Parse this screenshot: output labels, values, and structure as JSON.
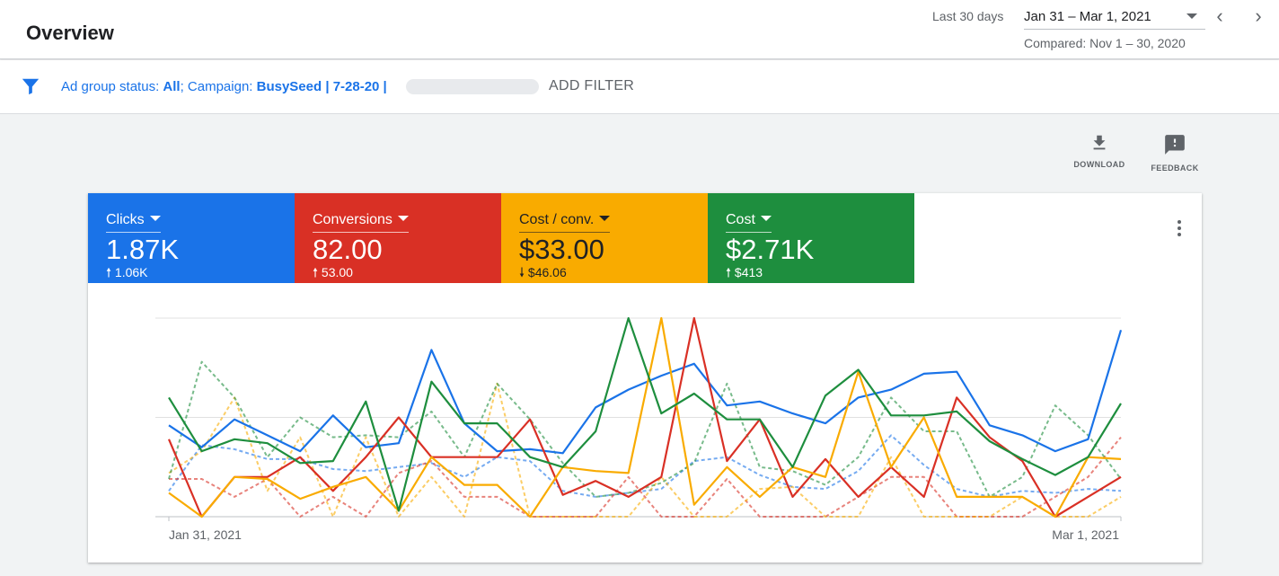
{
  "header": {
    "title": "Overview",
    "range_label": "Last 30 days",
    "range_value": "Jan 31 – Mar 1, 2021",
    "compared": "Compared: Nov 1 – 30, 2020",
    "prev_icon": "chevron-left-icon",
    "next_icon": "chevron-right-icon"
  },
  "filter": {
    "prefix": "Ad group status: ",
    "status_value": "All",
    "mid": "; Campaign: ",
    "campaign_value": "BusySeed | 7-28-20 |",
    "add_label": "ADD FILTER"
  },
  "actions": {
    "download": "DOWNLOAD",
    "feedback": "FEEDBACK"
  },
  "metrics": [
    {
      "name": "Clicks",
      "value": "1.87K",
      "arrow": "up",
      "change": "1.06K",
      "color": "#1a73e8"
    },
    {
      "name": "Conversions",
      "value": "82.00",
      "arrow": "up",
      "change": "53.00",
      "color": "#d93025"
    },
    {
      "name": "Cost / conv.",
      "value": "$33.00",
      "arrow": "down",
      "change": "$46.06",
      "color": "#f9ab00"
    },
    {
      "name": "Cost",
      "value": "$2.71K",
      "arrow": "up",
      "change": "$413",
      "color": "#1e8e3e"
    }
  ],
  "chart_data": {
    "type": "line",
    "x": [
      "Jan 31, 2021",
      "Feb 1, 2021",
      "Feb 2, 2021",
      "Feb 3, 2021",
      "Feb 4, 2021",
      "Feb 5, 2021",
      "Feb 6, 2021",
      "Feb 7, 2021",
      "Feb 8, 2021",
      "Feb 9, 2021",
      "Feb 10, 2021",
      "Feb 11, 2021",
      "Feb 12, 2021",
      "Feb 13, 2021",
      "Feb 14, 2021",
      "Feb 15, 2021",
      "Feb 16, 2021",
      "Feb 17, 2021",
      "Feb 18, 2021",
      "Feb 19, 2021",
      "Feb 20, 2021",
      "Feb 21, 2021",
      "Feb 22, 2021",
      "Feb 23, 2021",
      "Feb 24, 2021",
      "Feb 25, 2021",
      "Feb 26, 2021",
      "Feb 27, 2021",
      "Feb 28, 2021",
      "Mar 1, 2021"
    ],
    "x_tick_labels": [
      "Jan 31, 2021",
      "Mar 1, 2021"
    ],
    "ylim": [
      0,
      1
    ],
    "y_axis_labels": "none",
    "grid": true,
    "value_scale": "fraction of chart height (no y-axis values shown)",
    "series": [
      {
        "metric": "Clicks",
        "period": "current",
        "color": "#1a73e8",
        "dashed": false,
        "values": [
          0.46,
          0.35,
          0.49,
          0.41,
          0.33,
          0.51,
          0.35,
          0.37,
          0.84,
          0.47,
          0.33,
          0.34,
          0.32,
          0.55,
          0.64,
          0.71,
          0.77,
          0.56,
          0.58,
          0.52,
          0.47,
          0.6,
          0.64,
          0.72,
          0.73,
          0.46,
          0.41,
          0.33,
          0.39,
          0.94
        ]
      },
      {
        "metric": "Conversions",
        "period": "current",
        "color": "#d93025",
        "dashed": false,
        "values": [
          0.39,
          0.0,
          0.2,
          0.2,
          0.3,
          0.13,
          0.3,
          0.5,
          0.3,
          0.3,
          0.3,
          0.49,
          0.11,
          0.18,
          0.1,
          0.2,
          1.0,
          0.28,
          0.49,
          0.1,
          0.29,
          0.1,
          0.25,
          0.1,
          0.6,
          0.4,
          0.28,
          0.0,
          0.1,
          0.2
        ]
      },
      {
        "metric": "Cost / conv.",
        "period": "current",
        "color": "#f9ab00",
        "dashed": false,
        "values": [
          0.12,
          0.0,
          0.2,
          0.19,
          0.09,
          0.15,
          0.2,
          0.03,
          0.3,
          0.16,
          0.16,
          0.0,
          0.25,
          0.23,
          0.22,
          1.0,
          0.06,
          0.25,
          0.1,
          0.25,
          0.2,
          0.73,
          0.25,
          0.5,
          0.1,
          0.1,
          0.1,
          0.0,
          0.3,
          0.29
        ]
      },
      {
        "metric": "Cost",
        "period": "current",
        "color": "#1e8e3e",
        "dashed": false,
        "values": [
          0.6,
          0.33,
          0.39,
          0.37,
          0.27,
          0.28,
          0.58,
          0.03,
          0.68,
          0.47,
          0.47,
          0.3,
          0.25,
          0.43,
          1.0,
          0.52,
          0.62,
          0.49,
          0.49,
          0.25,
          0.61,
          0.74,
          0.51,
          0.51,
          0.53,
          0.38,
          0.29,
          0.21,
          0.3,
          0.57
        ]
      },
      {
        "metric": "Clicks",
        "period": "compared",
        "color": "#1a73e8",
        "dashed": true,
        "values": [
          0.13,
          0.36,
          0.34,
          0.29,
          0.29,
          0.24,
          0.23,
          0.25,
          0.27,
          0.2,
          0.3,
          0.28,
          0.13,
          0.1,
          0.12,
          0.14,
          0.28,
          0.3,
          0.21,
          0.15,
          0.14,
          0.23,
          0.41,
          0.26,
          0.14,
          0.1,
          0.13,
          0.12,
          0.14,
          0.13
        ]
      },
      {
        "metric": "Conversions",
        "period": "compared",
        "color": "#d93025",
        "dashed": true,
        "values": [
          0.19,
          0.19,
          0.1,
          0.19,
          0.0,
          0.1,
          0.0,
          0.22,
          0.28,
          0.1,
          0.1,
          0.0,
          0.0,
          0.0,
          0.2,
          0.0,
          0.0,
          0.19,
          0.0,
          0.0,
          0.0,
          0.1,
          0.2,
          0.2,
          0.0,
          0.0,
          0.0,
          0.1,
          0.2,
          0.4
        ]
      },
      {
        "metric": "Cost / conv.",
        "period": "compared",
        "color": "#f9ab00",
        "dashed": true,
        "values": [
          0.22,
          0.33,
          0.6,
          0.13,
          0.4,
          0.0,
          0.4,
          0.0,
          0.2,
          0.0,
          0.67,
          0.0,
          0.0,
          0.0,
          0.0,
          0.2,
          0.0,
          0.0,
          0.14,
          0.15,
          0.0,
          0.0,
          0.3,
          0.0,
          0.0,
          0.0,
          0.1,
          0.0,
          0.0,
          0.1
        ]
      },
      {
        "metric": "Cost",
        "period": "compared",
        "color": "#1e8e3e",
        "dashed": true,
        "values": [
          0.19,
          0.78,
          0.6,
          0.3,
          0.5,
          0.4,
          0.41,
          0.4,
          0.53,
          0.3,
          0.67,
          0.49,
          0.27,
          0.1,
          0.12,
          0.17,
          0.27,
          0.67,
          0.25,
          0.23,
          0.16,
          0.3,
          0.6,
          0.43,
          0.43,
          0.1,
          0.2,
          0.56,
          0.41,
          0.19
        ]
      }
    ]
  }
}
